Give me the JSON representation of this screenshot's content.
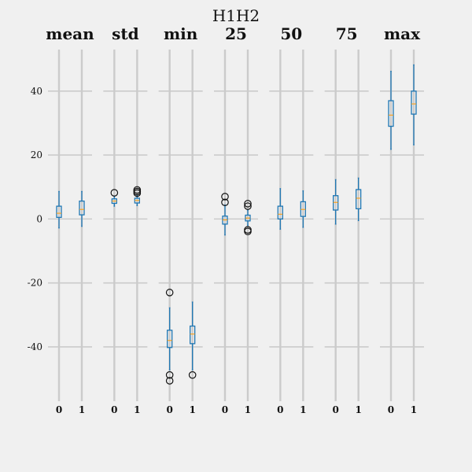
{
  "chart_data": {
    "type": "boxplot",
    "title": "H1H2",
    "ylim": [
      -57,
      53
    ],
    "yticks": [
      -40,
      -20,
      0,
      20,
      40
    ],
    "grid": true,
    "box_color": "#1f77b4",
    "median_color": "#ff9900",
    "panels": [
      {
        "title": "mean",
        "categories": [
          "0",
          "1"
        ],
        "boxes": [
          {
            "whislo": -2.8,
            "q1": 0.5,
            "med": 1.8,
            "q3": 4.0,
            "whishi": 8.6,
            "fliers": []
          },
          {
            "whislo": -2.3,
            "q1": 1.3,
            "med": 3.0,
            "q3": 5.6,
            "whishi": 8.6,
            "fliers": []
          }
        ]
      },
      {
        "title": "std",
        "categories": [
          "0",
          "1"
        ],
        "boxes": [
          {
            "whislo": 4.0,
            "q1": 4.9,
            "med": 5.6,
            "q3": 6.3,
            "whishi": 7.0,
            "fliers": [
              8.2
            ]
          },
          {
            "whislo": 4.2,
            "q1": 5.0,
            "med": 5.8,
            "q3": 6.5,
            "whishi": 7.4,
            "fliers": [
              8.1,
              8.6,
              9.1
            ]
          }
        ]
      },
      {
        "title": "min",
        "categories": [
          "0",
          "1"
        ],
        "boxes": [
          {
            "whislo": -47.2,
            "q1": -40.2,
            "med": -38.0,
            "q3": -34.8,
            "whishi": -27.8,
            "fliers": [
              -23.0,
              -48.8,
              -50.6
            ]
          },
          {
            "whislo": -47.2,
            "q1": -39.0,
            "med": -36.0,
            "q3": -33.5,
            "whishi": -26.0,
            "fliers": [
              -48.8
            ]
          }
        ]
      },
      {
        "title": "25",
        "categories": [
          "0",
          "1"
        ],
        "boxes": [
          {
            "whislo": -5.0,
            "q1": -1.6,
            "med": -0.3,
            "q3": 0.9,
            "whishi": 4.4,
            "fliers": [
              5.2,
              7.0
            ]
          },
          {
            "whislo": -2.0,
            "q1": -0.6,
            "med": 0.3,
            "q3": 1.2,
            "whishi": 2.8,
            "fliers": [
              4.0,
              4.8,
              -3.4,
              -3.9
            ]
          }
        ]
      },
      {
        "title": "50",
        "categories": [
          "0",
          "1"
        ],
        "boxes": [
          {
            "whislo": -3.2,
            "q1": 0.0,
            "med": 1.5,
            "q3": 4.0,
            "whishi": 9.5,
            "fliers": []
          },
          {
            "whislo": -2.6,
            "q1": 0.8,
            "med": 3.0,
            "q3": 5.4,
            "whishi": 8.8,
            "fliers": []
          }
        ]
      },
      {
        "title": "75",
        "categories": [
          "0",
          "1"
        ],
        "boxes": [
          {
            "whislo": -1.6,
            "q1": 2.8,
            "med": 5.2,
            "q3": 7.3,
            "whishi": 12.3,
            "fliers": []
          },
          {
            "whislo": -0.5,
            "q1": 3.2,
            "med": 6.5,
            "q3": 9.2,
            "whishi": 12.8,
            "fliers": []
          }
        ]
      },
      {
        "title": "max",
        "categories": [
          "0",
          "1"
        ],
        "boxes": [
          {
            "whislo": 21.8,
            "q1": 29.0,
            "med": 32.5,
            "q3": 37.0,
            "whishi": 46.2,
            "fliers": []
          },
          {
            "whislo": 23.2,
            "q1": 32.8,
            "med": 36.0,
            "q3": 40.0,
            "whishi": 48.2,
            "fliers": []
          }
        ]
      }
    ]
  }
}
